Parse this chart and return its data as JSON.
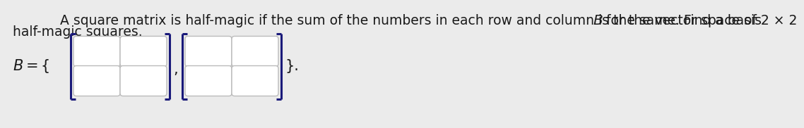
{
  "background_color": "#ebebeb",
  "box_facecolor": "#ffffff",
  "box_edgecolor": "#bbbbbb",
  "bracket_color": "#1a1a7a",
  "text_color": "#1a1a1a",
  "font_size_main": 13.5,
  "line1_text": "A square matrix is half-magic if the sum of the numbers in each row and column is the same. Find a basis ",
  "line1_bold": "B",
  "line1_end": " for the vector space of 2 × 2",
  "line2_text": "half-magic squares.",
  "basis_label": "B = {",
  "comma_text": ",",
  "closing_text": "}."
}
